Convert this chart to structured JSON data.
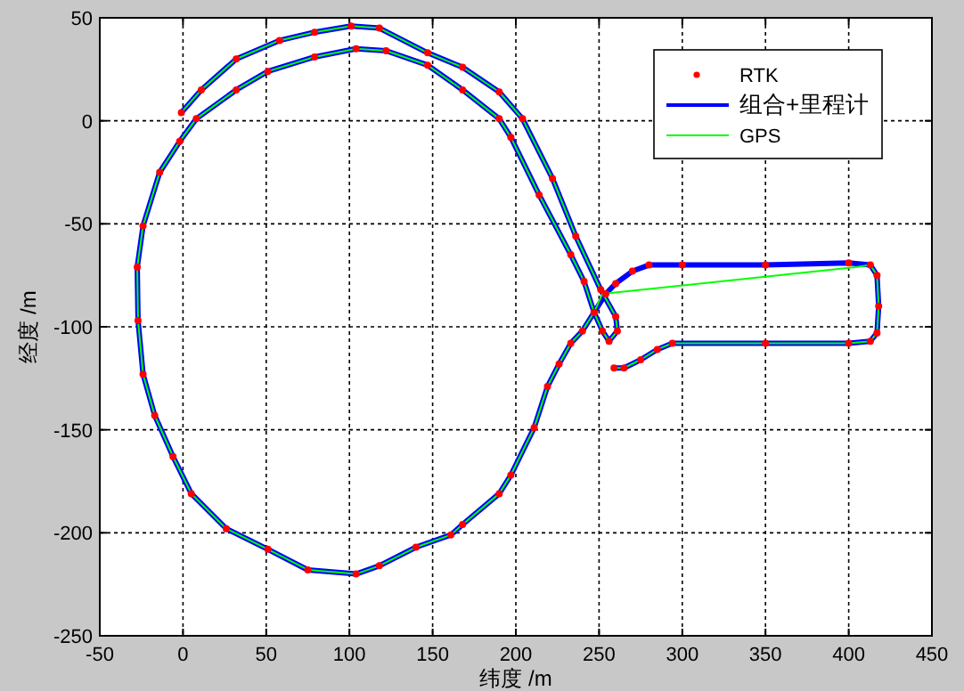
{
  "chart_data": {
    "type": "line",
    "xlabel": "纬度 /m",
    "ylabel": "经度 /m",
    "xlim": [
      -50,
      450
    ],
    "ylim": [
      -250,
      50
    ],
    "xticks": [
      -50,
      0,
      50,
      100,
      150,
      200,
      250,
      300,
      350,
      400,
      450
    ],
    "yticks": [
      -250,
      -200,
      -150,
      -100,
      -50,
      0,
      50
    ],
    "grid": true,
    "legend": "top right",
    "series": [
      {
        "name": "RTK",
        "type": "scatter",
        "color": "#ff0000",
        "x": [
          259,
          265,
          275,
          285,
          294,
          350,
          400,
          413,
          417,
          418,
          417,
          413,
          400,
          350,
          300,
          280,
          270,
          260,
          254,
          247,
          240,
          233,
          226,
          219,
          211,
          197,
          190,
          168,
          161,
          140,
          118,
          104,
          75,
          51,
          26,
          5,
          -6,
          -17,
          -24,
          -27,
          -27.5,
          -24,
          -14,
          -2,
          8,
          32,
          51,
          79,
          104,
          122,
          147,
          168,
          190,
          197,
          214,
          233,
          241,
          247,
          252,
          256,
          261,
          260,
          251,
          236,
          222,
          204,
          190,
          168,
          147,
          118,
          101,
          79,
          58,
          32,
          11,
          -1
        ],
        "values": [
          -120,
          -120,
          -116,
          -111,
          -108,
          -108,
          -108,
          -107,
          -103,
          -90,
          -75,
          -70,
          -69,
          -70,
          -70,
          -70,
          -73,
          -79,
          -84,
          -93,
          -102,
          -108,
          -118,
          -129,
          -149,
          -172,
          -181,
          -196,
          -201,
          -207,
          -216,
          -220,
          -218,
          -208,
          -198,
          -181,
          -163,
          -143,
          -123,
          -97,
          -71,
          -51,
          -25,
          -10,
          1,
          15,
          24,
          31,
          35,
          34,
          27,
          15,
          1,
          -8,
          -36,
          -65,
          -78,
          -93,
          -102,
          -107,
          -102,
          -95,
          -82,
          -56,
          -28,
          1,
          14,
          26,
          33,
          45,
          46,
          43,
          39,
          30,
          15,
          4
        ]
      },
      {
        "name": "组合+里程计",
        "type": "line",
        "color": "#0000ff",
        "x": [
          259,
          265,
          275,
          285,
          294,
          350,
          400,
          413,
          417,
          418,
          417,
          413,
          400,
          350,
          300,
          280,
          270,
          260,
          254,
          247,
          240,
          233,
          226,
          219,
          211,
          197,
          190,
          168,
          161,
          140,
          118,
          104,
          75,
          51,
          26,
          5,
          -6,
          -17,
          -24,
          -27,
          -27.5,
          -24,
          -14,
          -2,
          8,
          32,
          51,
          79,
          104,
          122,
          147,
          168,
          190,
          197,
          214,
          233,
          241,
          247,
          252,
          256,
          261,
          260,
          251,
          236,
          222,
          204,
          190,
          168,
          147,
          118,
          101,
          79,
          58,
          32,
          11,
          -1
        ],
        "values": [
          -120,
          -120,
          -116,
          -111,
          -108,
          -108,
          -108,
          -107,
          -103,
          -90,
          -75,
          -70,
          -69,
          -70,
          -70,
          -70,
          -73,
          -79,
          -84,
          -93,
          -102,
          -108,
          -118,
          -129,
          -149,
          -172,
          -181,
          -196,
          -201,
          -207,
          -216,
          -220,
          -218,
          -208,
          -198,
          -181,
          -163,
          -143,
          -123,
          -97,
          -71,
          -51,
          -25,
          -10,
          1,
          15,
          24,
          31,
          35,
          34,
          27,
          15,
          1,
          -8,
          -36,
          -65,
          -78,
          -93,
          -102,
          -107,
          -102,
          -95,
          -82,
          -56,
          -28,
          1,
          14,
          26,
          33,
          45,
          46,
          43,
          39,
          30,
          15,
          4
        ]
      },
      {
        "name": "GPS",
        "type": "line",
        "color": "#00ff00",
        "x": [
          259,
          265,
          275,
          285,
          294,
          350,
          400,
          413,
          417,
          418,
          417,
          413,
          404,
          252,
          247,
          240,
          233,
          226,
          219,
          211,
          197,
          190,
          168,
          161,
          140,
          118,
          104,
          75,
          51,
          26,
          5,
          -6,
          -17,
          -24,
          -27,
          -27.5,
          -24,
          -14,
          -2,
          8,
          32,
          51,
          79,
          104,
          122,
          147,
          168,
          190,
          197,
          214,
          233,
          241,
          247,
          252,
          256,
          261,
          260,
          251,
          236,
          222,
          204,
          190,
          168,
          147,
          118,
          101,
          79,
          58,
          32,
          11,
          -1
        ],
        "values": [
          -120,
          -120,
          -116,
          -111,
          -108,
          -108,
          -108,
          -107,
          -103,
          -90,
          -75,
          -70,
          -71,
          -84,
          -93,
          -102,
          -108,
          -118,
          -129,
          -149,
          -172,
          -181,
          -196,
          -201,
          -207,
          -216,
          -220,
          -218,
          -208,
          -198,
          -181,
          -163,
          -143,
          -123,
          -97,
          -71,
          -51,
          -25,
          -10,
          1,
          15,
          24,
          31,
          35,
          34,
          27,
          15,
          1,
          -8,
          -36,
          -65,
          -78,
          -93,
          -102,
          -107,
          -102,
          -95,
          -82,
          -56,
          -28,
          1,
          14,
          26,
          33,
          45,
          46,
          43,
          39,
          30,
          15,
          4
        ]
      }
    ]
  }
}
